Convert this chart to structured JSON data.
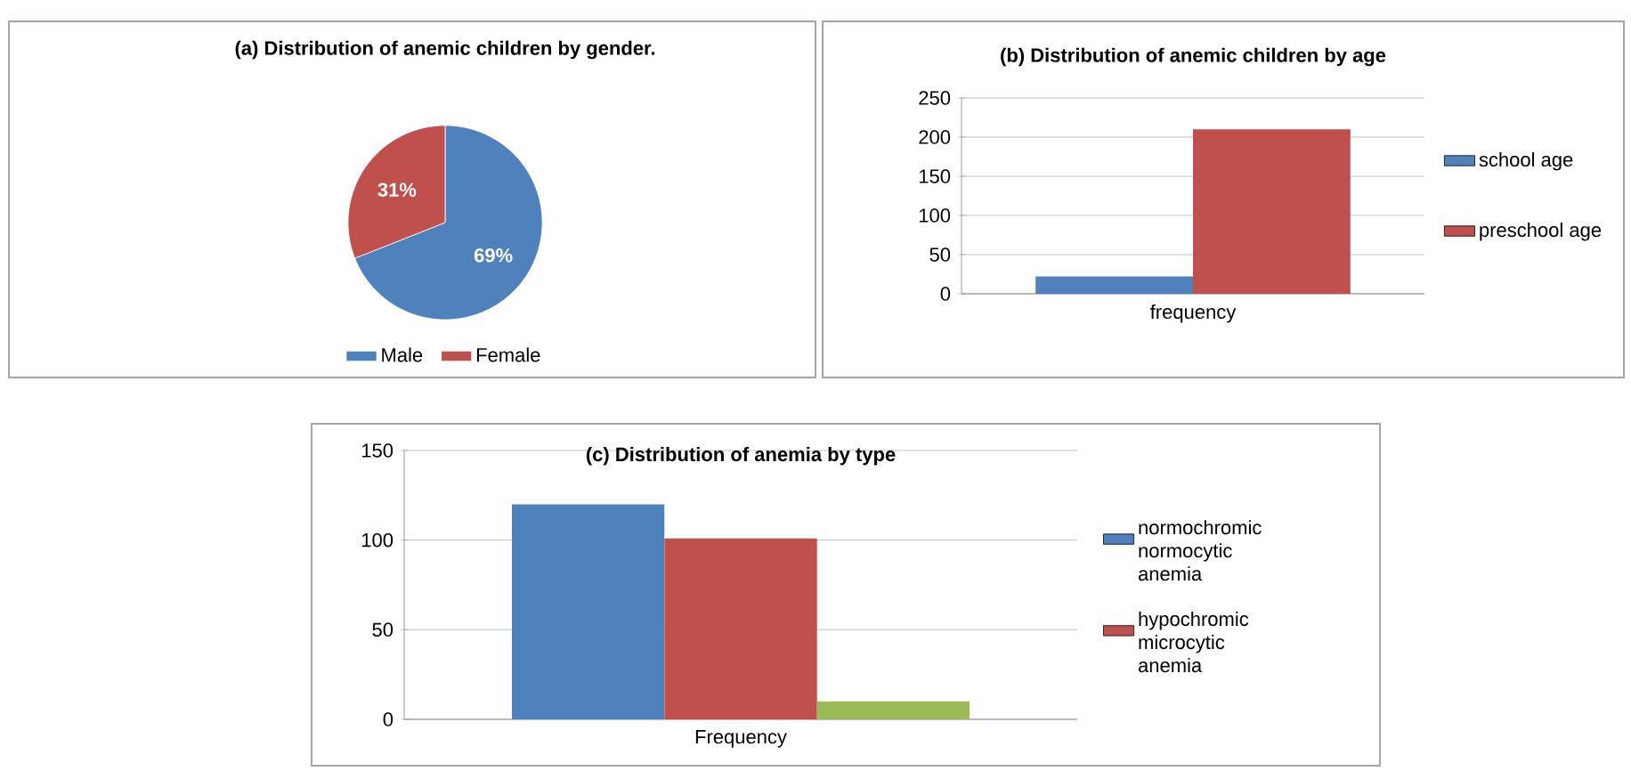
{
  "chart_data": [
    {
      "type": "pie",
      "title": "(a) Distribution of anemic children by gender.",
      "categories": [
        "Male",
        "Female"
      ],
      "values": [
        69,
        31
      ],
      "colors": [
        "#4f81bd",
        "#c0504d"
      ],
      "value_labels": [
        "69%",
        "31%"
      ],
      "legend": "bottom"
    },
    {
      "type": "bar",
      "title": "(b) Distribution of anemic children by age",
      "categories": [
        "frequency"
      ],
      "series": [
        {
          "name": "school age",
          "color": "#4f81bd",
          "values": [
            22
          ]
        },
        {
          "name": "preschool age",
          "color": "#c0504d",
          "values": [
            210
          ]
        }
      ],
      "ylim": [
        0,
        250
      ],
      "yticks": [
        0,
        50,
        100,
        150,
        200,
        250
      ],
      "grid": "y",
      "legend": "right"
    },
    {
      "type": "bar",
      "title": "(c) Distribution of anemia by type",
      "categories": [
        "Frequency"
      ],
      "series": [
        {
          "name": "normochromic normocytic anemia",
          "color": "#4f81bd",
          "values": [
            120
          ]
        },
        {
          "name": "hypochromic microcytic anemia",
          "color": "#c0504d",
          "values": [
            101
          ]
        },
        {
          "color": "#9bbb59",
          "values": [
            10
          ]
        }
      ],
      "ylim": [
        0,
        150
      ],
      "yticks": [
        0,
        50,
        100,
        150
      ],
      "grid": "y",
      "legend": "right"
    }
  ]
}
